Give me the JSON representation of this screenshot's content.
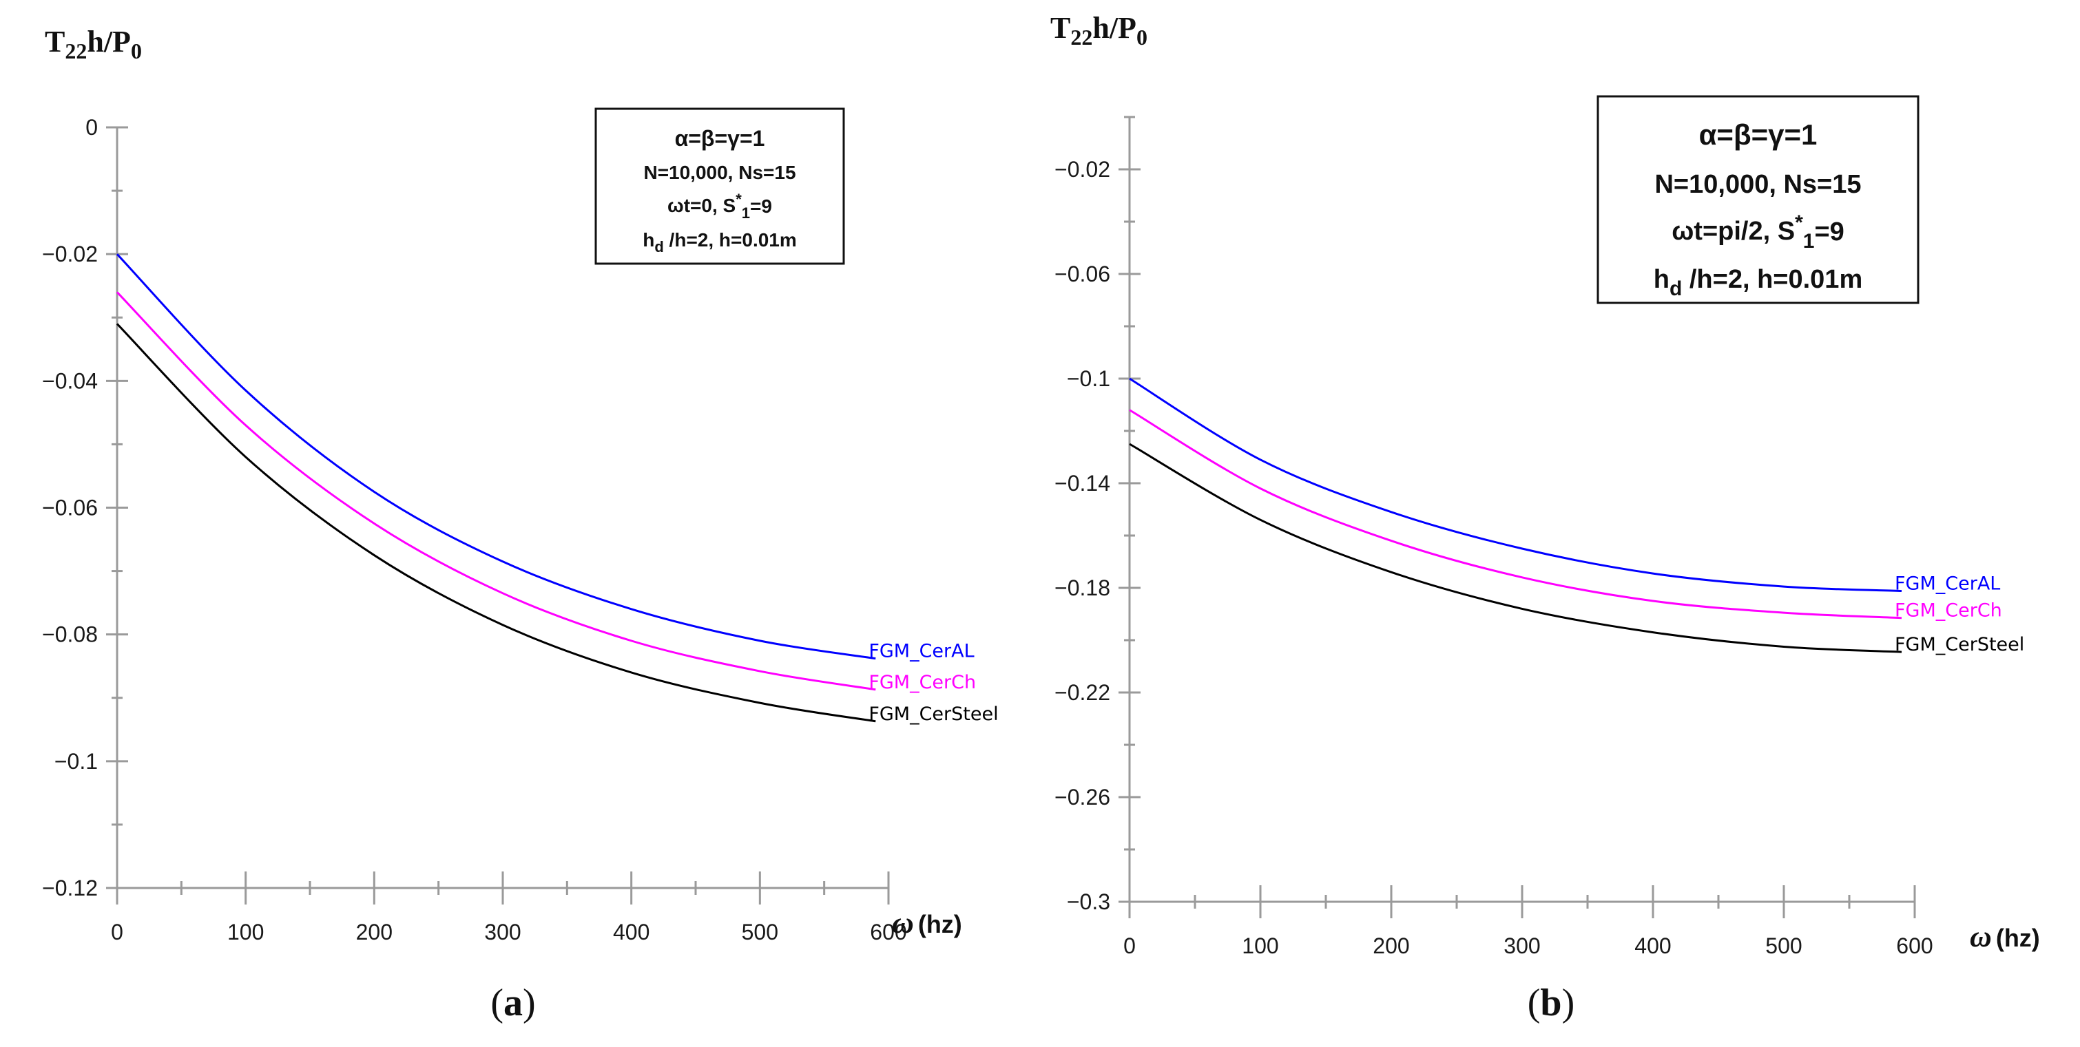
{
  "chart_data": [
    {
      "type": "line",
      "panel": "(a)",
      "ylabel": {
        "base": "T",
        "sub": "22",
        "mid": "h/P",
        "sub2": "0"
      },
      "xlabel": {
        "symbol": "ω",
        "unit": "(hz)"
      },
      "xlim": [
        0,
        600
      ],
      "ylim": [
        -0.12,
        0
      ],
      "xticks": [
        0,
        100,
        200,
        300,
        400,
        500,
        600
      ],
      "xtick_labels": [
        "0",
        "100",
        "200",
        "300",
        "400",
        "500",
        "600"
      ],
      "yticks": [
        0,
        -0.02,
        -0.04,
        -0.06,
        -0.08,
        -0.1,
        -0.12
      ],
      "ytick_labels": [
        "0",
        "−0.02",
        "−0.04",
        "−0.06",
        "−0.08",
        "−0.1",
        "−0.12"
      ],
      "annotation": {
        "line1": "α=β=γ=1",
        "line2": "N=10,000, Ns=15",
        "line3_pre": "ωt=0, S",
        "line3_sup": "*",
        "line3_sub": "1",
        "line3_post": "=9",
        "line4_pre": "h",
        "line4_sub": "d",
        "line4_post": " /h=2,  h=0.01m"
      },
      "series": [
        {
          "name": "FGM_CerAL",
          "color": "#0000ff",
          "x": [
            0,
            100,
            200,
            300,
            400,
            500,
            590
          ],
          "y": [
            -0.02,
            -0.0415,
            -0.0575,
            -0.0685,
            -0.076,
            -0.081,
            -0.0838
          ]
        },
        {
          "name": "FGM_CerCh",
          "color": "#ff00ff",
          "x": [
            0,
            100,
            200,
            300,
            400,
            500,
            590
          ],
          "y": [
            -0.026,
            -0.047,
            -0.0625,
            -0.0735,
            -0.081,
            -0.0858,
            -0.0887
          ]
        },
        {
          "name": "FGM_CerSteel",
          "color": "#000000",
          "x": [
            0,
            100,
            200,
            300,
            400,
            500,
            590
          ],
          "y": [
            -0.031,
            -0.052,
            -0.0675,
            -0.0785,
            -0.086,
            -0.0908,
            -0.0937
          ]
        }
      ]
    },
    {
      "type": "line",
      "panel": "(b)",
      "ylabel": {
        "base": "T",
        "sub": "22",
        "mid": "h/P",
        "sub2": "0"
      },
      "xlabel": {
        "symbol": "ω",
        "unit": "(hz)"
      },
      "xlim": [
        0,
        600
      ],
      "ylim": [
        -0.3,
        0
      ],
      "xticks": [
        0,
        100,
        200,
        300,
        400,
        500,
        600
      ],
      "xtick_labels": [
        "0",
        "100",
        "200",
        "300",
        "400",
        "500",
        "600"
      ],
      "yticks": [
        -0.02,
        -0.06,
        -0.1,
        -0.14,
        -0.18,
        -0.22,
        -0.26,
        -0.3
      ],
      "ytick_labels": [
        "−0.02",
        "−0.06",
        "−0.1",
        "−0.14",
        "−0.18",
        "−0.22",
        "−0.26",
        "−0.3"
      ],
      "annotation": {
        "line1": "α=β=γ=1",
        "line2": "N=10,000, Ns=15",
        "line3_pre": "ωt=pi/2, S",
        "line3_sup": "*",
        "line3_sub": "1",
        "line3_post": "=9",
        "line4_pre": "h",
        "line4_sub": "d",
        "line4_post": " /h=2,  h=0.01m"
      },
      "series": [
        {
          "name": "FGM_CerAL",
          "color": "#0000ff",
          "x": [
            0,
            100,
            200,
            300,
            400,
            500,
            590
          ],
          "y": [
            -0.1,
            -0.131,
            -0.151,
            -0.165,
            -0.1745,
            -0.1795,
            -0.1812
          ]
        },
        {
          "name": "FGM_CerCh",
          "color": "#ff00ff",
          "x": [
            0,
            100,
            200,
            300,
            400,
            500,
            590
          ],
          "y": [
            -0.112,
            -0.142,
            -0.162,
            -0.176,
            -0.185,
            -0.1895,
            -0.1915
          ]
        },
        {
          "name": "FGM_CerSteel",
          "color": "#000000",
          "x": [
            0,
            100,
            200,
            300,
            400,
            500,
            590
          ],
          "y": [
            -0.125,
            -0.154,
            -0.174,
            -0.188,
            -0.197,
            -0.2025,
            -0.2045
          ]
        }
      ]
    }
  ]
}
